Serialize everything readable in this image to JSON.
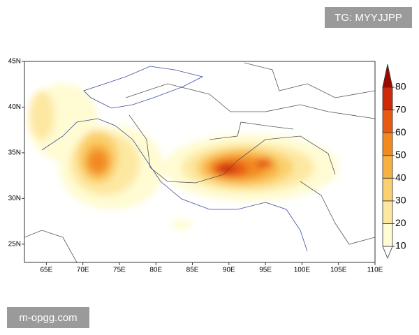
{
  "watermark_top": "TG: MYYJJPP",
  "watermark_bottom": "m-opgg.com",
  "map": {
    "xlim": [
      62,
      110
    ],
    "ylim": [
      23,
      45
    ],
    "xticks": [
      {
        "value": 65,
        "label": "65E"
      },
      {
        "value": 70,
        "label": "70E"
      },
      {
        "value": 75,
        "label": "75E"
      },
      {
        "value": 80,
        "label": "80E"
      },
      {
        "value": 85,
        "label": "85E"
      },
      {
        "value": 90,
        "label": "90E"
      },
      {
        "value": 95,
        "label": "95E"
      },
      {
        "value": 100,
        "label": "100E"
      },
      {
        "value": 105,
        "label": "105E"
      },
      {
        "value": 110,
        "label": "110E"
      }
    ],
    "yticks": [
      {
        "value": 25,
        "label": "25N"
      },
      {
        "value": 30,
        "label": "30N"
      },
      {
        "value": 35,
        "label": "35N"
      },
      {
        "value": 40,
        "label": "40N"
      },
      {
        "value": 45,
        "label": "45N"
      }
    ],
    "colorbar": {
      "ticks": [
        10,
        20,
        30,
        40,
        50,
        60,
        70,
        80
      ],
      "colors": [
        "#ffffff",
        "#fffbd2",
        "#fde8a2",
        "#fbd06e",
        "#f7b042",
        "#f28a22",
        "#e85a12",
        "#cc2a08",
        "#9a0a00"
      ]
    }
  }
}
